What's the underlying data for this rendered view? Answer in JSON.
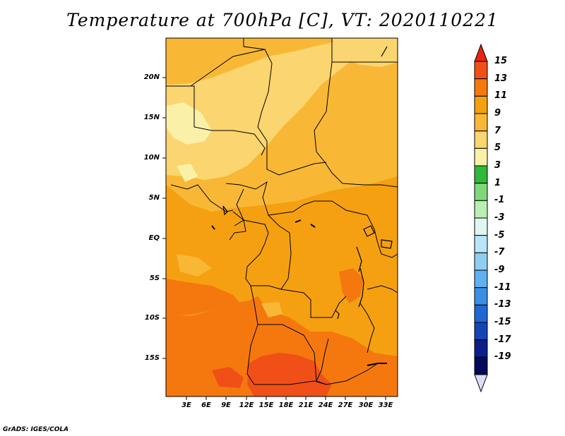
{
  "title": "Temperature at 700hPa [C], VT: 2020110221",
  "credit": "GrADS: IGES/COLA",
  "lat_labels": [
    "20N",
    "15N",
    "10N",
    "5N",
    "EQ",
    "5S",
    "10S",
    "15S"
  ],
  "lon_labels": [
    "3E",
    "6E",
    "9E",
    "12E",
    "15E",
    "18E",
    "21E",
    "24E",
    "27E",
    "30E",
    "33E"
  ],
  "colorbar": {
    "labels": [
      "15",
      "13",
      "11",
      "9",
      "7",
      "5",
      "3",
      "1",
      "-1",
      "-3",
      "-5",
      "-7",
      "-9",
      "-11",
      "-13",
      "-15",
      "-17",
      "-19"
    ],
    "colors": [
      "#e8230e",
      "#f05018",
      "#f5780f",
      "#f5a010",
      "#f8b836",
      "#fad570",
      "#faf0a8",
      "#2fb83a",
      "#7ed87a",
      "#b9efb0",
      "#e0f6f2",
      "#b8e6f8",
      "#8fcdf2",
      "#5fb0ee",
      "#3a8fe4",
      "#1f68d4",
      "#1544b4",
      "#0c1e88",
      "#050a58"
    ]
  },
  "map_colors": {
    "t13": "#f05018",
    "t11": "#f5780f",
    "t9": "#f5a010",
    "t7": "#f8b836",
    "t5": "#fad570",
    "t3": "#faf0a8"
  }
}
